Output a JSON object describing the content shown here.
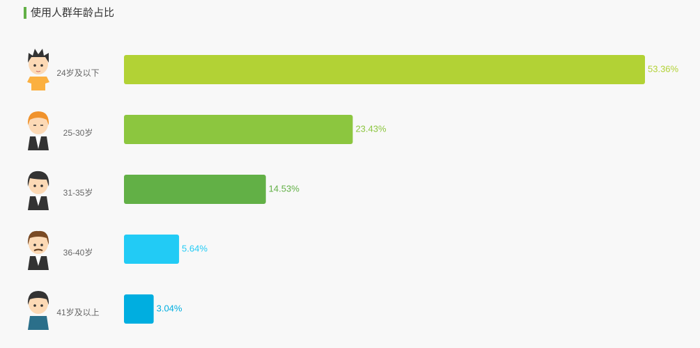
{
  "chart_data": {
    "type": "bar",
    "orientation": "horizontal",
    "title": "使用人群年龄占比",
    "categories": [
      "24岁及以下",
      "25-30岁",
      "31-35岁",
      "36-40岁",
      "41岁及以上"
    ],
    "values": [
      53.36,
      23.43,
      14.53,
      5.64,
      3.04
    ],
    "value_labels": [
      "53.36%",
      "23.43%",
      "14.53%",
      "5.64%",
      "3.04%"
    ],
    "colors": [
      "#b2d235",
      "#8cc63f",
      "#62b046",
      "#22cbf5",
      "#00aee0"
    ]
  }
}
